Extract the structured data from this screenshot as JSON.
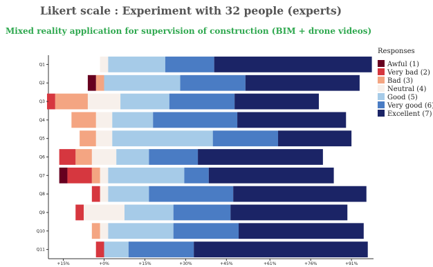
{
  "header": {
    "title": "Likert scale : Experiment with 32 people (experts)",
    "subtitle": "Mixed reality application for supervision of construction (BIM + drone videos)"
  },
  "chart_data": {
    "type": "bar",
    "stacked": "diverging",
    "categories": [
      "Q1",
      "Q2",
      "Q3",
      "Q4",
      "Q5",
      "Q6",
      "Q7",
      "Q8",
      "Q9",
      "Q10",
      "Q11"
    ],
    "legend_title": "Responses",
    "legend_position": "right",
    "series": [
      {
        "name": "Awful (1)",
        "color": "#67001f",
        "values": [
          0,
          3,
          0,
          0,
          0,
          0,
          3,
          0,
          0,
          0,
          0
        ]
      },
      {
        "name": "Very bad (2)",
        "color": "#d6373f",
        "values": [
          0,
          0,
          3,
          0,
          0,
          6,
          9,
          3,
          3,
          0,
          3
        ]
      },
      {
        "name": "Bad (3)",
        "color": "#f4a582",
        "values": [
          0,
          3,
          12,
          9,
          6,
          6,
          3,
          0,
          0,
          3,
          0
        ]
      },
      {
        "name": "Neutral (4)",
        "color": "#f7f0eb",
        "values": [
          3,
          0,
          12,
          6,
          6,
          9,
          3,
          3,
          15,
          3,
          0
        ]
      },
      {
        "name": "Good (5)",
        "color": "#a6cbe8",
        "values": [
          21,
          28,
          18,
          15,
          37,
          12,
          28,
          15,
          18,
          24,
          9
        ]
      },
      {
        "name": "Very good (6)",
        "color": "#4a7cc4",
        "values": [
          18,
          24,
          24,
          31,
          24,
          18,
          9,
          31,
          21,
          24,
          24
        ]
      },
      {
        "name": "Excellent (7)",
        "color": "#1b2466",
        "values": [
          58,
          42,
          31,
          40,
          27,
          46,
          46,
          49,
          43,
          46,
          64
        ]
      }
    ],
    "xaxis": {
      "min": -18,
      "max": 100,
      "ticks": [
        -15,
        0,
        15,
        30,
        45,
        61,
        76,
        91
      ],
      "tick_labels": [
        "+15%",
        "+0%",
        "+15%",
        "+30%",
        "+45%",
        "+61%",
        "+76%",
        "+91%"
      ]
    },
    "grid": false
  }
}
